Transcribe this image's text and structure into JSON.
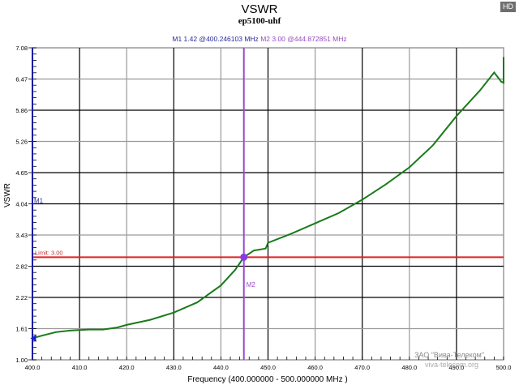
{
  "header": {
    "title": "VSWR",
    "subtitle": "ep5100-uhf",
    "hd_badge": "HD"
  },
  "markers": {
    "m1": {
      "label": "M1",
      "value": "1.42",
      "freq": "@400.246103 MHz",
      "text": "M1   1.42 @400.246103 MHz"
    },
    "m2": {
      "label": "M2",
      "value": "3.00",
      "freq": "@444.872851 MHz",
      "text": "M2   3.00 @444.872851 MHz"
    }
  },
  "limit": {
    "label": "Limit: 3.00",
    "value": 3.0
  },
  "axes": {
    "ylabel": "VSWR",
    "xlabel": "Frequency (400.000000 - 500.000000 MHz )"
  },
  "watermark": {
    "company": "ЗАО \"Вива-Телеком\"",
    "url": "viva-telecom.org"
  },
  "colors": {
    "trace": "#1a7a1a",
    "limit": "#e02020",
    "m1": "#1a1aa0",
    "m2": "#9a4ad0",
    "grid_dark": "#000000",
    "grid_gray": "#9a9a9a"
  },
  "chart_data": {
    "type": "line",
    "title": "VSWR",
    "subtitle": "ep5100-uhf",
    "xlabel": "Frequency (400.000000 - 500.000000 MHz )",
    "ylabel": "VSWR",
    "xlim": [
      400,
      500
    ],
    "ylim": [
      1.0,
      7.08
    ],
    "x_ticks": [
      "400.0",
      "410.0",
      "420.0",
      "430.0",
      "440.0",
      "450.0",
      "460.0",
      "470.0",
      "480.0",
      "490.0",
      "500.0"
    ],
    "y_ticks": [
      "1.00",
      "1.61",
      "2.22",
      "2.82",
      "3.43",
      "4.04",
      "4.65",
      "5.26",
      "5.86",
      "6.47",
      "7.08"
    ],
    "grid": true,
    "series": [
      {
        "name": "VSWR",
        "x": [
          400,
          402,
          405,
          408,
          410,
          412,
          415,
          418,
          420,
          425,
          430,
          435,
          440,
          443,
          444.87,
          447,
          449,
          449.5,
          450,
          455,
          460,
          465,
          470,
          475,
          480,
          485,
          490,
          495,
          498,
          499.5,
          500,
          500
        ],
        "values": [
          1.42,
          1.47,
          1.54,
          1.57,
          1.58,
          1.59,
          1.59,
          1.63,
          1.68,
          1.78,
          1.92,
          2.12,
          2.45,
          2.75,
          3.0,
          3.13,
          3.16,
          3.17,
          3.28,
          3.46,
          3.66,
          3.86,
          4.12,
          4.42,
          4.75,
          5.18,
          5.75,
          6.25,
          6.6,
          6.42,
          6.4,
          6.9
        ]
      }
    ],
    "limit_line": {
      "label": "Limit: 3.00",
      "value": 3.0
    },
    "markers": [
      {
        "name": "M1",
        "x": 400.246103,
        "y": 1.42
      },
      {
        "name": "M2",
        "x": 444.872851,
        "y": 3.0
      }
    ]
  }
}
